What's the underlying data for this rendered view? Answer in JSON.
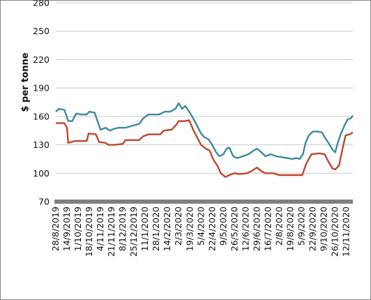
{
  "chart_data": {
    "type": "line",
    "title": "",
    "xlabel": "",
    "ylabel": "$ per tonne",
    "ylim": [
      70,
      280
    ],
    "yticks": [
      70,
      100,
      130,
      160,
      190,
      220,
      250,
      280
    ],
    "grid": "horizontal",
    "legend": "none",
    "x_tick_labels": [
      "28/8/2019",
      "14/9/2019",
      "1/10/2019",
      "18/10/2019",
      "4/11/2019",
      "21/11/2019",
      "8/12/2019",
      "25/12/2019",
      "11/1/2020",
      "28/1/2020",
      "14/2/2020",
      "2/3/2020",
      "19/3/2020",
      "5/4/2020",
      "22/4/2020",
      "9/5/2020",
      "26/5/2020",
      "12/6/2020",
      "29/6/2020",
      "16/7/2020",
      "2/8/2020",
      "19/8/2020",
      "5/9/2020",
      "22/9/2020",
      "9/10/2020",
      "26/10/2020",
      "12/11/2020"
    ],
    "x_range": [
      "28/8/2019",
      "22/11/2020"
    ],
    "series": [
      {
        "color": "#3a8aa0",
        "points": [
          [
            "28/8/2019",
            165
          ],
          [
            "2/9/2019",
            168
          ],
          [
            "10/9/2019",
            167
          ],
          [
            "16/9/2019",
            155
          ],
          [
            "22/9/2019",
            155
          ],
          [
            "28/9/2019",
            163
          ],
          [
            "6/10/2019",
            162
          ],
          [
            "14/10/2019",
            162
          ],
          [
            "18/10/2019",
            165
          ],
          [
            "26/10/2019",
            164
          ],
          [
            "1/11/2019",
            152
          ],
          [
            "4/11/2019",
            146
          ],
          [
            "12/11/2019",
            148
          ],
          [
            "18/11/2019",
            145
          ],
          [
            "25/11/2019",
            147
          ],
          [
            "2/12/2019",
            148
          ],
          [
            "12/12/2019",
            148
          ],
          [
            "22/12/2019",
            150
          ],
          [
            "2/1/2020",
            152
          ],
          [
            "8/1/2020",
            158
          ],
          [
            "16/1/2020",
            162
          ],
          [
            "24/1/2020",
            162
          ],
          [
            "1/2/2020",
            162
          ],
          [
            "10/2/2020",
            165
          ],
          [
            "18/2/2020",
            165
          ],
          [
            "26/2/2020",
            168
          ],
          [
            "2/3/2020",
            174
          ],
          [
            "7/3/2020",
            168
          ],
          [
            "12/3/2020",
            171
          ],
          [
            "18/3/2020",
            165
          ],
          [
            "24/3/2020",
            158
          ],
          [
            "30/3/2020",
            150
          ],
          [
            "5/4/2020",
            142
          ],
          [
            "10/4/2020",
            138
          ],
          [
            "16/4/2020",
            136
          ],
          [
            "22/4/2020",
            130
          ],
          [
            "28/4/2020",
            122
          ],
          [
            "3/5/2020",
            118
          ],
          [
            "9/5/2020",
            120
          ],
          [
            "14/5/2020",
            126
          ],
          [
            "18/5/2020",
            127
          ],
          [
            "24/5/2020",
            118
          ],
          [
            "30/5/2020",
            116
          ],
          [
            "8/6/2020",
            118
          ],
          [
            "16/6/2020",
            120
          ],
          [
            "22/6/2020",
            123
          ],
          [
            "29/6/2020",
            126
          ],
          [
            "6/7/2020",
            122
          ],
          [
            "12/7/2020",
            118
          ],
          [
            "20/7/2020",
            120
          ],
          [
            "28/7/2020",
            118
          ],
          [
            "5/8/2020",
            117
          ],
          [
            "14/8/2020",
            116
          ],
          [
            "22/8/2020",
            115
          ],
          [
            "28/8/2020",
            116
          ],
          [
            "2/9/2020",
            115
          ],
          [
            "7/9/2020",
            120
          ],
          [
            "11/9/2020",
            132
          ],
          [
            "16/9/2020",
            140
          ],
          [
            "22/9/2020",
            144
          ],
          [
            "30/9/2020",
            144
          ],
          [
            "6/10/2020",
            143
          ],
          [
            "12/10/2020",
            136
          ],
          [
            "16/10/2020",
            132
          ],
          [
            "22/10/2020",
            125
          ],
          [
            "26/10/2020",
            122
          ],
          [
            "30/10/2020",
            132
          ],
          [
            "4/11/2020",
            142
          ],
          [
            "9/11/2020",
            150
          ],
          [
            "14/11/2020",
            157
          ],
          [
            "19/11/2020",
            158
          ],
          [
            "22/11/2020",
            161
          ]
        ]
      },
      {
        "color": "#c0462a",
        "points": [
          [
            "28/8/2019",
            153
          ],
          [
            "10/9/2019",
            153
          ],
          [
            "14/9/2019",
            148
          ],
          [
            "16/9/2019",
            132
          ],
          [
            "26/9/2019",
            134
          ],
          [
            "14/10/2019",
            134
          ],
          [
            "17/10/2019",
            142
          ],
          [
            "28/10/2019",
            141
          ],
          [
            "2/11/2019",
            133
          ],
          [
            "12/11/2019",
            132
          ],
          [
            "16/11/2019",
            130
          ],
          [
            "26/11/2019",
            130
          ],
          [
            "8/12/2019",
            131
          ],
          [
            "12/12/2019",
            135
          ],
          [
            "2/1/2020",
            135
          ],
          [
            "8/1/2020",
            139
          ],
          [
            "16/1/2020",
            141
          ],
          [
            "3/2/2020",
            141
          ],
          [
            "8/2/2020",
            145
          ],
          [
            "20/2/2020",
            146
          ],
          [
            "26/2/2020",
            150
          ],
          [
            "2/3/2020",
            155
          ],
          [
            "12/3/2020",
            155
          ],
          [
            "18/3/2020",
            156
          ],
          [
            "24/3/2020",
            146
          ],
          [
            "30/3/2020",
            138
          ],
          [
            "5/4/2020",
            130
          ],
          [
            "12/4/2020",
            126
          ],
          [
            "18/4/2020",
            124
          ],
          [
            "24/4/2020",
            114
          ],
          [
            "30/4/2020",
            108
          ],
          [
            "5/5/2020",
            100
          ],
          [
            "12/5/2020",
            96
          ],
          [
            "18/5/2020",
            98
          ],
          [
            "26/5/2020",
            100
          ],
          [
            "2/6/2020",
            99
          ],
          [
            "14/6/2020",
            100
          ],
          [
            "20/6/2020",
            102
          ],
          [
            "29/6/2020",
            106
          ],
          [
            "6/7/2020",
            102
          ],
          [
            "12/7/2020",
            100
          ],
          [
            "24/7/2020",
            100
          ],
          [
            "2/8/2020",
            98
          ],
          [
            "22/8/2020",
            98
          ],
          [
            "6/9/2020",
            98
          ],
          [
            "12/9/2020",
            110
          ],
          [
            "20/9/2020",
            120
          ],
          [
            "2/10/2020",
            121
          ],
          [
            "10/10/2020",
            120
          ],
          [
            "16/10/2020",
            112
          ],
          [
            "22/10/2020",
            105
          ],
          [
            "26/10/2020",
            104
          ],
          [
            "1/11/2020",
            108
          ],
          [
            "6/11/2020",
            125
          ],
          [
            "11/11/2020",
            140
          ],
          [
            "17/11/2020",
            141
          ],
          [
            "22/11/2020",
            143
          ]
        ]
      }
    ]
  }
}
